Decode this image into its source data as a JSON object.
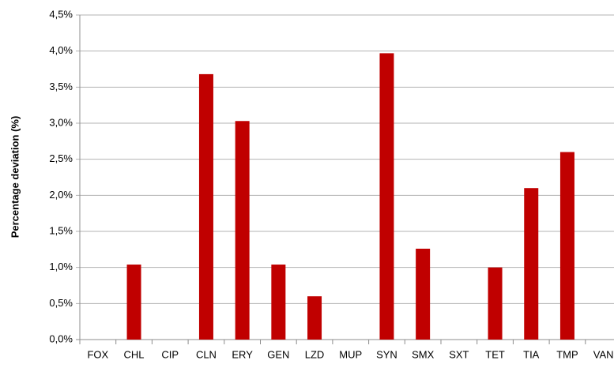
{
  "chart_data": {
    "type": "bar",
    "y_label": "Percentage deviation (%)",
    "categories": [
      "FOX",
      "CHL",
      "CIP",
      "CLN",
      "ERY",
      "GEN",
      "LZD",
      "MUP",
      "SYN",
      "SMX",
      "SXT",
      "TET",
      "TIA",
      "TMP",
      "VAN"
    ],
    "values": [
      0,
      1.04,
      0,
      3.68,
      3.03,
      1.04,
      0.6,
      0,
      3.97,
      1.26,
      0,
      1.0,
      2.1,
      2.6,
      0
    ],
    "color": "#c00000",
    "ylim": [
      0,
      4.5
    ],
    "yticks": [
      {
        "value": 0,
        "label": "0,0%"
      },
      {
        "value": 0.5,
        "label": "0,5%"
      },
      {
        "value": 1,
        "label": "1,0%"
      },
      {
        "value": 1.5,
        "label": "1,5%"
      },
      {
        "value": 2,
        "label": "2,0%"
      },
      {
        "value": 2.5,
        "label": "2,5%"
      },
      {
        "value": 3,
        "label": "3,0%"
      },
      {
        "value": 3.5,
        "label": "3,5%"
      },
      {
        "value": 4,
        "label": "4,0%"
      },
      {
        "value": 4.5,
        "label": "4,5%"
      }
    ],
    "grid": true
  }
}
